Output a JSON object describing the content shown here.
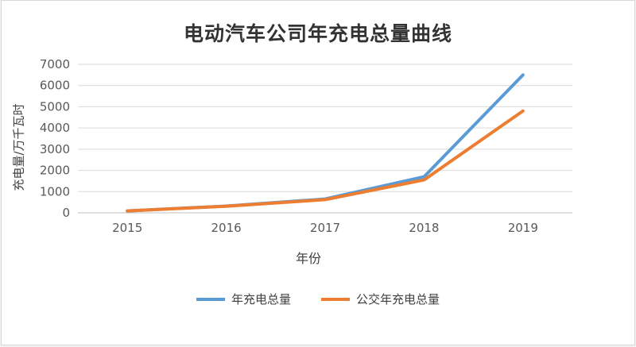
{
  "chart_data": {
    "type": "line",
    "title": "电动汽车公司年充电总量曲线",
    "xlabel": "年份",
    "ylabel": "充电量/万千瓦时",
    "categories": [
      "2015",
      "2016",
      "2017",
      "2018",
      "2019"
    ],
    "series": [
      {
        "name": "年充电总量",
        "color": "#5B9BD5",
        "values": [
          90,
          320,
          650,
          1700,
          6500
        ]
      },
      {
        "name": "公交年充电总量",
        "color": "#ED7D31",
        "values": [
          90,
          310,
          620,
          1550,
          4800
        ]
      }
    ],
    "ylim": [
      0,
      7000
    ],
    "ytick_step": 1000,
    "grid": true,
    "legend_position": "bottom",
    "colors": {
      "gridline": "#d9d9d9",
      "axis_line": "#bfbfbf",
      "tick_text": "#595959",
      "title_text": "#333333"
    }
  }
}
